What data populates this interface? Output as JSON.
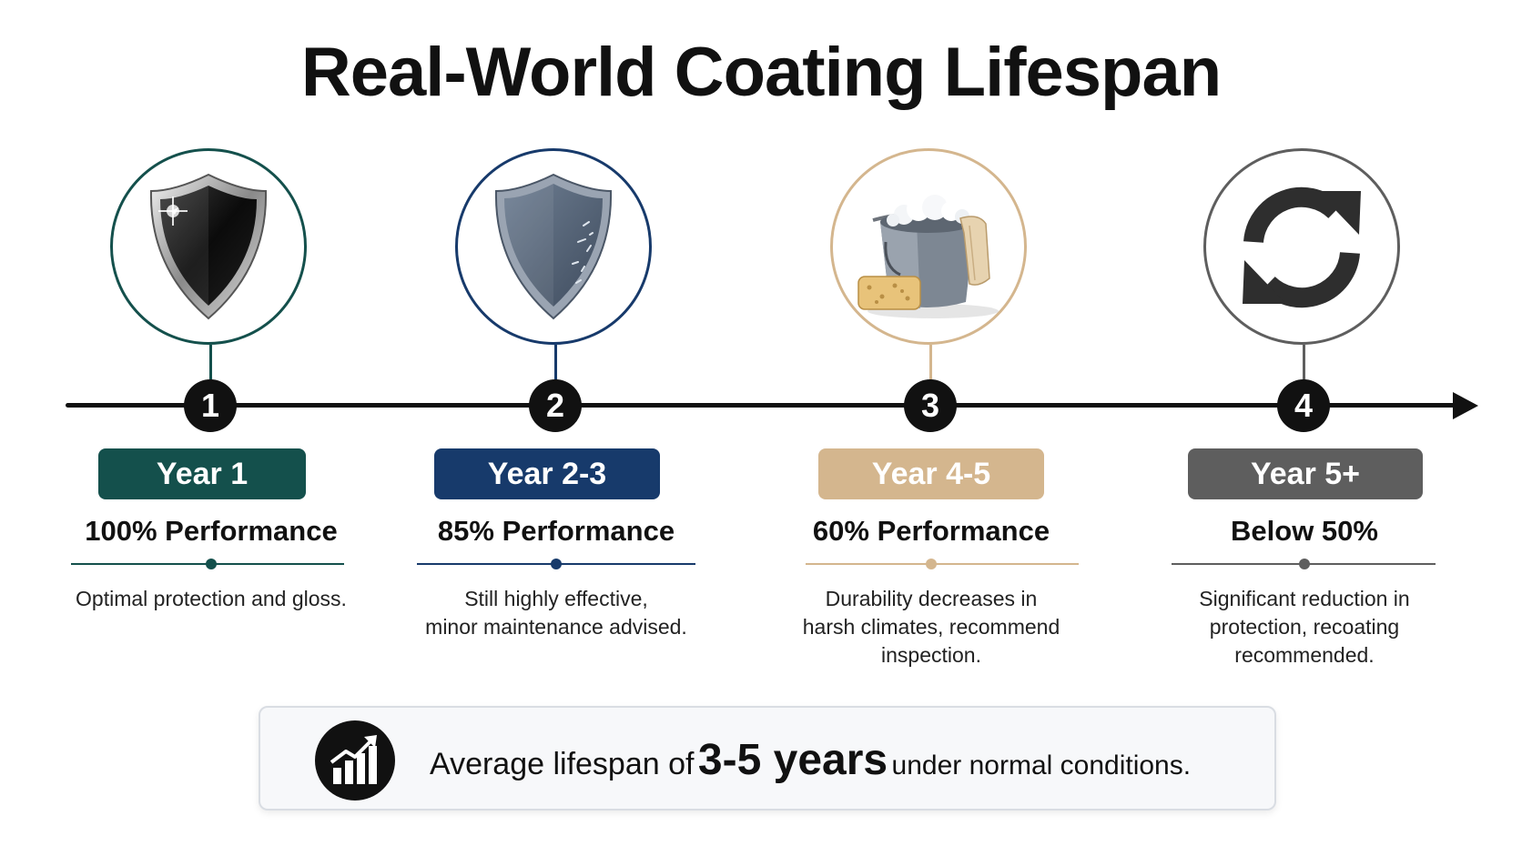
{
  "title": "Real-World Coating Lifespan",
  "stages": [
    {
      "step": "1",
      "year": "Year 1",
      "performance": "100% Performance",
      "description": [
        "Optimal protection and gloss."
      ],
      "icon": "glossy-shield-icon",
      "color": "#14504c"
    },
    {
      "step": "2",
      "year": "Year 2-3",
      "performance": "85% Performance",
      "description": [
        "Still highly effective,",
        "minor maintenance advised."
      ],
      "icon": "worn-shield-icon",
      "color": "#173a6b"
    },
    {
      "step": "3",
      "year": "Year 4-5",
      "performance": "60% Performance",
      "description": [
        "Durability decreases in",
        "harsh climates, recommend",
        "inspection."
      ],
      "icon": "wash-bucket-icon",
      "color": "#d4b68e"
    },
    {
      "step": "4",
      "year": "Year 5+",
      "performance": "Below 50%",
      "description": [
        "Significant reduction in",
        "protection, recoating",
        "recommended."
      ],
      "icon": "refresh-icon",
      "color": "#5e5e5e"
    }
  ],
  "summary": {
    "icon": "growth-chart-icon",
    "pre": "Average lifespan of",
    "highlight": "3-5 years",
    "post": "under normal conditions."
  }
}
